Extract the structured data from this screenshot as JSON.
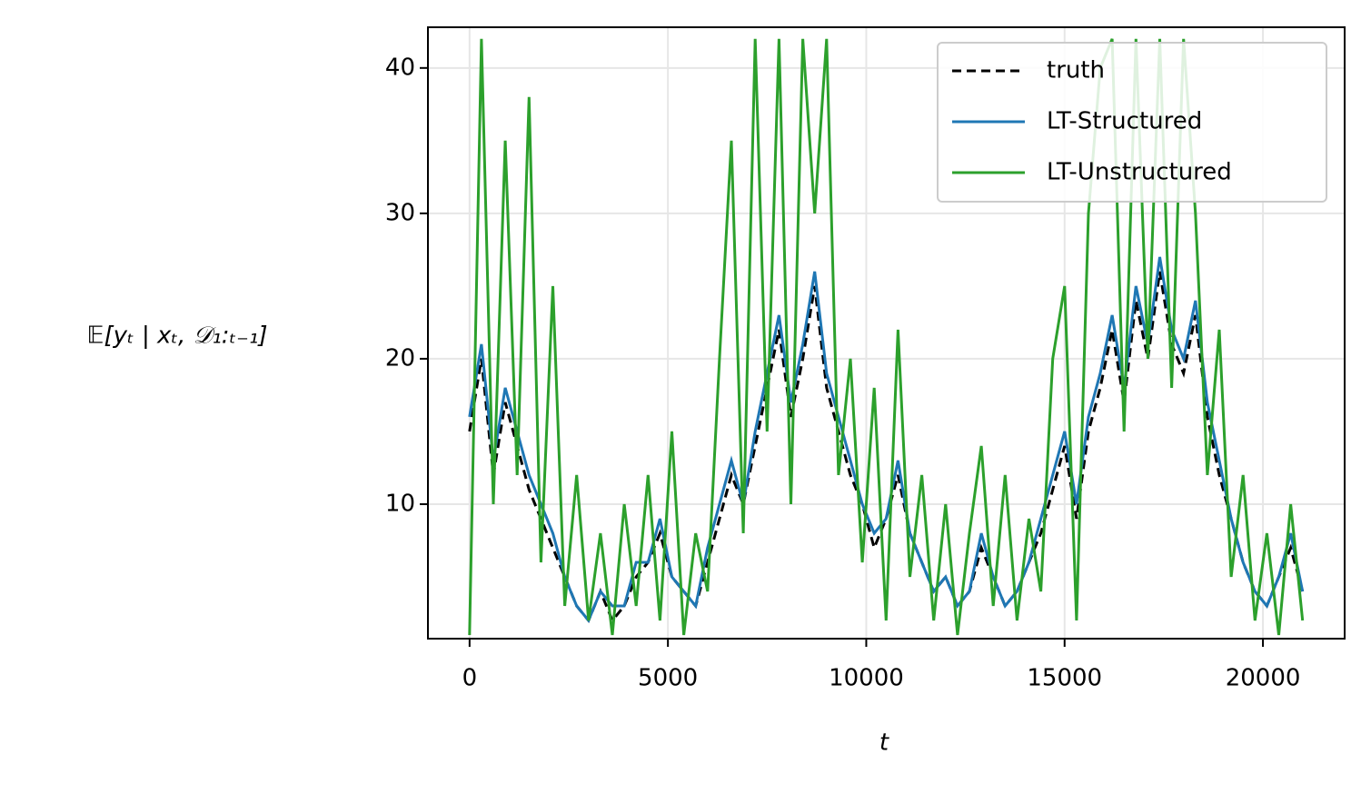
{
  "chart_data": {
    "type": "line",
    "xlabel": "t",
    "ylabel": "𝔼[yₜ | xₜ, 𝒟₁:ₜ₋₁]",
    "x": [
      0,
      300,
      600,
      900,
      1200,
      1500,
      1800,
      2100,
      2400,
      2700,
      3000,
      3300,
      3600,
      3900,
      4200,
      4500,
      4800,
      5100,
      5400,
      5700,
      6000,
      6300,
      6600,
      6900,
      7200,
      7500,
      7800,
      8100,
      8400,
      8700,
      9000,
      9300,
      9600,
      9900,
      10200,
      10500,
      10800,
      11100,
      11400,
      11700,
      12000,
      12300,
      12600,
      12900,
      13200,
      13500,
      13800,
      14100,
      14400,
      14700,
      15000,
      15300,
      15600,
      15900,
      16200,
      16500,
      16800,
      17100,
      17400,
      17700,
      18000,
      18300,
      18600,
      18900,
      19200,
      19500,
      19800,
      20100,
      20400,
      20700,
      21000
    ],
    "series": [
      {
        "name": "truth",
        "color": "#000000",
        "linestyle": "dashed",
        "values": [
          15,
          20,
          12,
          17,
          14,
          11,
          9,
          7,
          5,
          3,
          2,
          4,
          2,
          3,
          5,
          6,
          8,
          5,
          4,
          3,
          6,
          9,
          12,
          10,
          14,
          18,
          22,
          16,
          20,
          25,
          18,
          15,
          12,
          10,
          7,
          9,
          12,
          8,
          6,
          4,
          5,
          3,
          4,
          7,
          5,
          3,
          4,
          6,
          8,
          11,
          14,
          9,
          15,
          18,
          22,
          17,
          24,
          20,
          26,
          21,
          19,
          23,
          16,
          12,
          9,
          6,
          4,
          3,
          5,
          7,
          4
        ]
      },
      {
        "name": "LT-Structured",
        "color": "#1f77b4",
        "linestyle": "solid",
        "values": [
          16,
          21,
          13,
          18,
          15,
          12,
          10,
          8,
          5,
          3,
          2,
          4,
          3,
          3,
          6,
          6,
          9,
          5,
          4,
          3,
          7,
          10,
          13,
          10,
          15,
          19,
          23,
          17,
          21,
          26,
          19,
          16,
          13,
          10,
          8,
          9,
          13,
          8,
          6,
          4,
          5,
          3,
          4,
          8,
          5,
          3,
          4,
          6,
          9,
          12,
          15,
          10,
          16,
          19,
          23,
          18,
          25,
          21,
          27,
          22,
          20,
          24,
          17,
          13,
          9,
          6,
          4,
          3,
          5,
          8,
          4
        ]
      },
      {
        "name": "LT-Unstructured",
        "color": "#2ca02c",
        "linestyle": "solid",
        "values": [
          1,
          42,
          10,
          35,
          12,
          38,
          6,
          25,
          3,
          12,
          2,
          8,
          1,
          10,
          3,
          12,
          2,
          15,
          1,
          8,
          4,
          20,
          35,
          8,
          42,
          15,
          42,
          10,
          42,
          30,
          42,
          12,
          20,
          6,
          18,
          2,
          22,
          5,
          12,
          2,
          10,
          1,
          8,
          14,
          3,
          12,
          2,
          9,
          4,
          20,
          25,
          2,
          30,
          40,
          42,
          15,
          42,
          20,
          42,
          18,
          42,
          30,
          12,
          22,
          5,
          12,
          2,
          8,
          1,
          10,
          2
        ]
      }
    ],
    "xlim": [
      -1050,
      22060
    ],
    "xticks": [
      0,
      5000,
      10000,
      15000,
      20000
    ],
    "ylim": [
      0.75,
      42.8
    ],
    "yticks": [
      10,
      20,
      30,
      40
    ],
    "grid": true,
    "legend": "upper right"
  }
}
